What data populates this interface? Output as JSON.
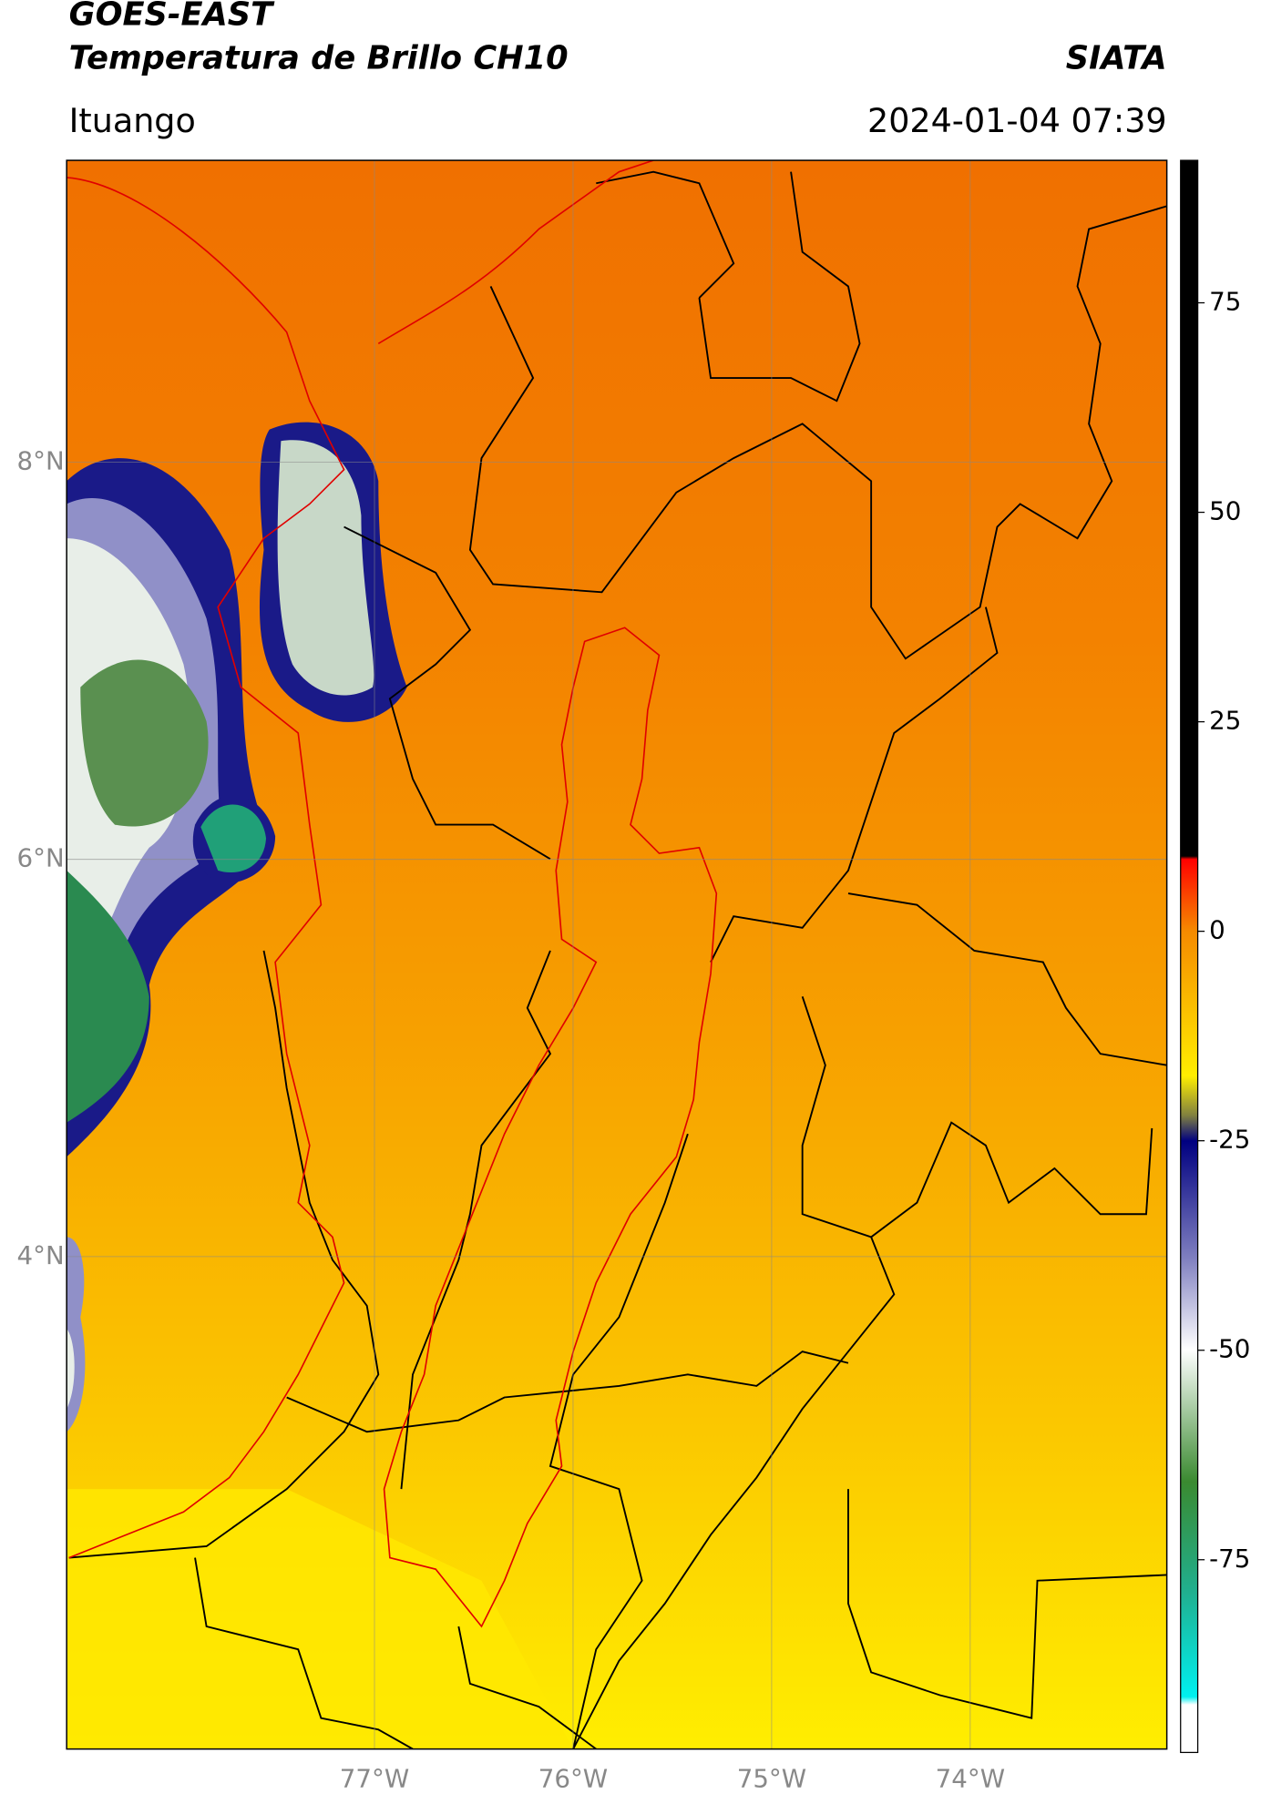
{
  "header": {
    "title": "GOES-EAST",
    "subtitle": "Temperatura de Brillo CH10",
    "source": "SIATA",
    "location": "Ituango",
    "datetime": "2024-01-04 07:39"
  },
  "map": {
    "xlim": [
      -78.55,
      -73.01
    ],
    "ylim": [
      1.52,
      9.52
    ],
    "xticks": [
      {
        "value": -77,
        "label": "77°W"
      },
      {
        "value": -76,
        "label": "76°W"
      },
      {
        "value": -75,
        "label": "75°W"
      },
      {
        "value": -74,
        "label": "74°W"
      }
    ],
    "yticks": [
      {
        "value": 8,
        "label": "8°N"
      },
      {
        "value": 6,
        "label": "6°N"
      },
      {
        "value": 4,
        "label": "4°N"
      }
    ],
    "grid": true
  },
  "colorbar": {
    "lim": [
      -98,
      92
    ],
    "ticks": [
      75,
      50,
      25,
      0,
      -25,
      -50,
      -75
    ]
  }
}
